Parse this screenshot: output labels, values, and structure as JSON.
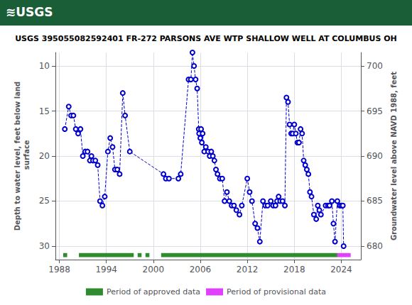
{
  "chart_data": {
    "type": "line",
    "title": "USGS 395055082592401 FR-272 PARSONS AVE WTP SHALLOW WELL AT COLUMBUS OH",
    "header": {
      "text": "≋USGS",
      "color": "#1a5e38"
    },
    "y_label": "Depth to water level, feet below land\n surface",
    "y2_label": "Groundwater level above NAVD 1988, feet",
    "xlim": [
      1987.5,
      2026.5
    ],
    "xticks": [
      1988,
      1994,
      2000,
      2006,
      2012,
      2018,
      2024
    ],
    "ylim": [
      31.5,
      8.5
    ],
    "yticks": [
      10,
      15,
      20,
      25,
      30
    ],
    "y2lim": [
      678.5,
      701.5
    ],
    "y2ticks": [
      680,
      685,
      690,
      695,
      700
    ],
    "grid": true,
    "series": [
      {
        "type": "line",
        "color": "#0000cc",
        "line_style": "dashed",
        "marker": "open circle",
        "x": [
          1988.7,
          1989.2,
          1989.5,
          1989.8,
          1990.1,
          1990.4,
          1990.7,
          1991.0,
          1991.3,
          1991.6,
          1991.9,
          1992.1,
          1992.3,
          1992.6,
          1992.9,
          1993.2,
          1993.5,
          1993.8,
          1994.2,
          1994.5,
          1994.8,
          1995.1,
          1995.4,
          1995.7,
          1996.1,
          1996.4,
          1997.0,
          2001.3,
          2001.6,
          2002.0,
          2003.2,
          2003.5,
          2004.5,
          2004.8,
          2005.0,
          2005.2,
          2005.4,
          2005.6,
          2005.8,
          2005.85,
          2006.0,
          2006.1,
          2006.2,
          2006.3,
          2006.5,
          2006.7,
          2007.0,
          2007.2,
          2007.4,
          2007.6,
          2007.8,
          2008.0,
          2008.2,
          2008.5,
          2008.8,
          2009.1,
          2009.4,
          2009.7,
          2010.0,
          2010.3,
          2010.6,
          2011.0,
          2011.3,
          2012.0,
          2012.3,
          2012.6,
          2013.0,
          2013.3,
          2013.6,
          2014.0,
          2014.3,
          2014.6,
          2015.0,
          2015.3,
          2015.6,
          2015.8,
          2016.0,
          2016.2,
          2016.5,
          2016.8,
          2017.0,
          2017.2,
          2017.4,
          2017.6,
          2017.8,
          2018.0,
          2018.2,
          2018.4,
          2018.6,
          2018.8,
          2019.0,
          2019.2,
          2019.4,
          2019.6,
          2019.8,
          2020.0,
          2020.2,
          2020.5,
          2020.8,
          2021.0,
          2021.2,
          2021.4,
          2022.0,
          2022.3,
          2022.5,
          2022.8,
          2023.0,
          2023.2,
          2023.5,
          2023.8,
          2024.0,
          2024.2,
          2024.3
        ],
        "values": [
          17.0,
          14.5,
          15.5,
          15.5,
          17.0,
          17.5,
          17.0,
          20.0,
          19.5,
          19.5,
          20.5,
          20.0,
          20.5,
          20.5,
          21.0,
          25.0,
          25.5,
          24.5,
          19.5,
          18.0,
          19.0,
          21.5,
          21.5,
          22.0,
          13.0,
          15.5,
          19.5,
          22.0,
          22.5,
          22.5,
          22.5,
          22.0,
          11.5,
          11.5,
          8.5,
          10.0,
          11.5,
          12.5,
          17.0,
          17.5,
          18.0,
          17.0,
          18.5,
          17.5,
          19.5,
          19.0,
          19.5,
          20.0,
          19.5,
          20.0,
          20.5,
          21.5,
          22.0,
          22.5,
          22.5,
          25.0,
          24.0,
          25.0,
          25.5,
          25.5,
          26.0,
          26.5,
          25.5,
          22.5,
          24.0,
          25.0,
          27.5,
          28.0,
          29.5,
          25.0,
          25.5,
          25.5,
          25.0,
          25.5,
          25.5,
          25.0,
          24.5,
          25.0,
          25.0,
          25.5,
          13.5,
          14.0,
          16.5,
          17.5,
          17.5,
          16.5,
          17.5,
          18.5,
          18.5,
          17.0,
          17.5,
          20.5,
          21.0,
          21.5,
          22.0,
          24.0,
          24.5,
          26.5,
          27.0,
          25.5,
          26.0,
          26.5,
          25.5,
          25.5,
          25.5,
          25.0,
          27.5,
          29.5,
          25.0,
          25.5,
          25.5,
          25.5,
          30.0
        ]
      }
    ],
    "bar_y": 31.0,
    "bar_height": 0.45,
    "periods": [
      {
        "name": "Period of approved data",
        "color": "#2e8b2e",
        "ranges": [
          [
            1988.5,
            1989.0
          ],
          [
            1990.5,
            1997.5
          ],
          [
            1998.0,
            1998.5
          ],
          [
            1999.0,
            1999.5
          ],
          [
            2001.0,
            2023.5
          ]
        ]
      },
      {
        "name": "Period of provisional data",
        "color": "#e040fb",
        "ranges": [
          [
            2023.5,
            2025.2
          ]
        ]
      }
    ]
  }
}
